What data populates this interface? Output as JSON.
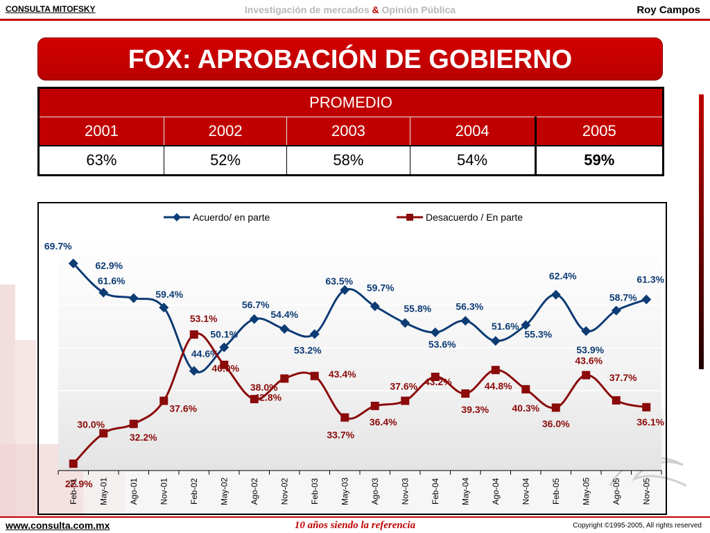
{
  "header": {
    "brand": "CONSULTA MITOFSKY",
    "tagline_left": "Investigación de mercados",
    "tagline_amp": "&",
    "tagline_right": "Opinión Pública",
    "author": "Roy Campos"
  },
  "title": "FOX: APROBACIÓN DE GOBIERNO",
  "table": {
    "header": "PROMEDIO",
    "years": [
      "2001",
      "2002",
      "2003",
      "2004",
      "2005"
    ],
    "values": [
      "63%",
      "52%",
      "58%",
      "54%",
      "59%"
    ]
  },
  "chart_data": {
    "type": "line",
    "categories": [
      "Feb-01",
      "May-01",
      "Ago-01",
      "Nov-01",
      "Feb-02",
      "May-02",
      "Ago-02",
      "Nov-02",
      "Feb-03",
      "May-03",
      "Ago-03",
      "Nov-03",
      "Feb-04",
      "May-04",
      "Ago-04",
      "Nov-04",
      "Feb-05",
      "May-05",
      "Ago-05",
      "Nov-05"
    ],
    "series": [
      {
        "name": "Acuerdo/ en parte",
        "color": "#0d3b74",
        "marker": "diamond",
        "values": [
          69.7,
          62.9,
          61.6,
          59.4,
          44.6,
          50.1,
          56.7,
          54.4,
          53.2,
          63.5,
          59.7,
          55.8,
          53.6,
          56.3,
          51.6,
          55.3,
          62.4,
          53.9,
          58.7,
          61.3
        ],
        "labels": [
          "69.7%",
          "62.9%",
          "61.6%",
          "59.4%",
          "44.6%",
          "50.1%",
          "56.7%",
          "54.4%",
          "53.2%",
          "63.5%",
          "59.7%",
          "55.8%",
          "53.6%",
          "56.3%",
          "51.6%",
          "55.3%",
          "62.4%",
          "53.9%",
          "58.7%",
          "61.3%"
        ]
      },
      {
        "name": "Desacuerdo / En parte",
        "color": "#8b0a0a",
        "marker": "square",
        "values": [
          22.9,
          30.0,
          32.2,
          37.6,
          53.1,
          46.0,
          38.0,
          42.8,
          43.4,
          33.7,
          36.4,
          37.6,
          43.2,
          39.3,
          44.8,
          40.3,
          36.0,
          43.6,
          37.7,
          36.1
        ],
        "labels": [
          "22.9%",
          "30.0%",
          "32.2%",
          "37.6%",
          "53.1%",
          "46.0%",
          "38.0%",
          "42.8%",
          "43.4%",
          "33.7%",
          "36.4%",
          "37.6%",
          "43.2%",
          "39.3%",
          "44.8%",
          "40.3%",
          "36.0%",
          "43.6%",
          "37.7%",
          "36.1%"
        ]
      }
    ],
    "legend_position": "top",
    "grid": true
  },
  "footer": {
    "url": "www.consulta.com.mx",
    "motto": "10 años siendo la referencia",
    "copyright": "Copyright ©1995-2005, All rights reserved"
  }
}
